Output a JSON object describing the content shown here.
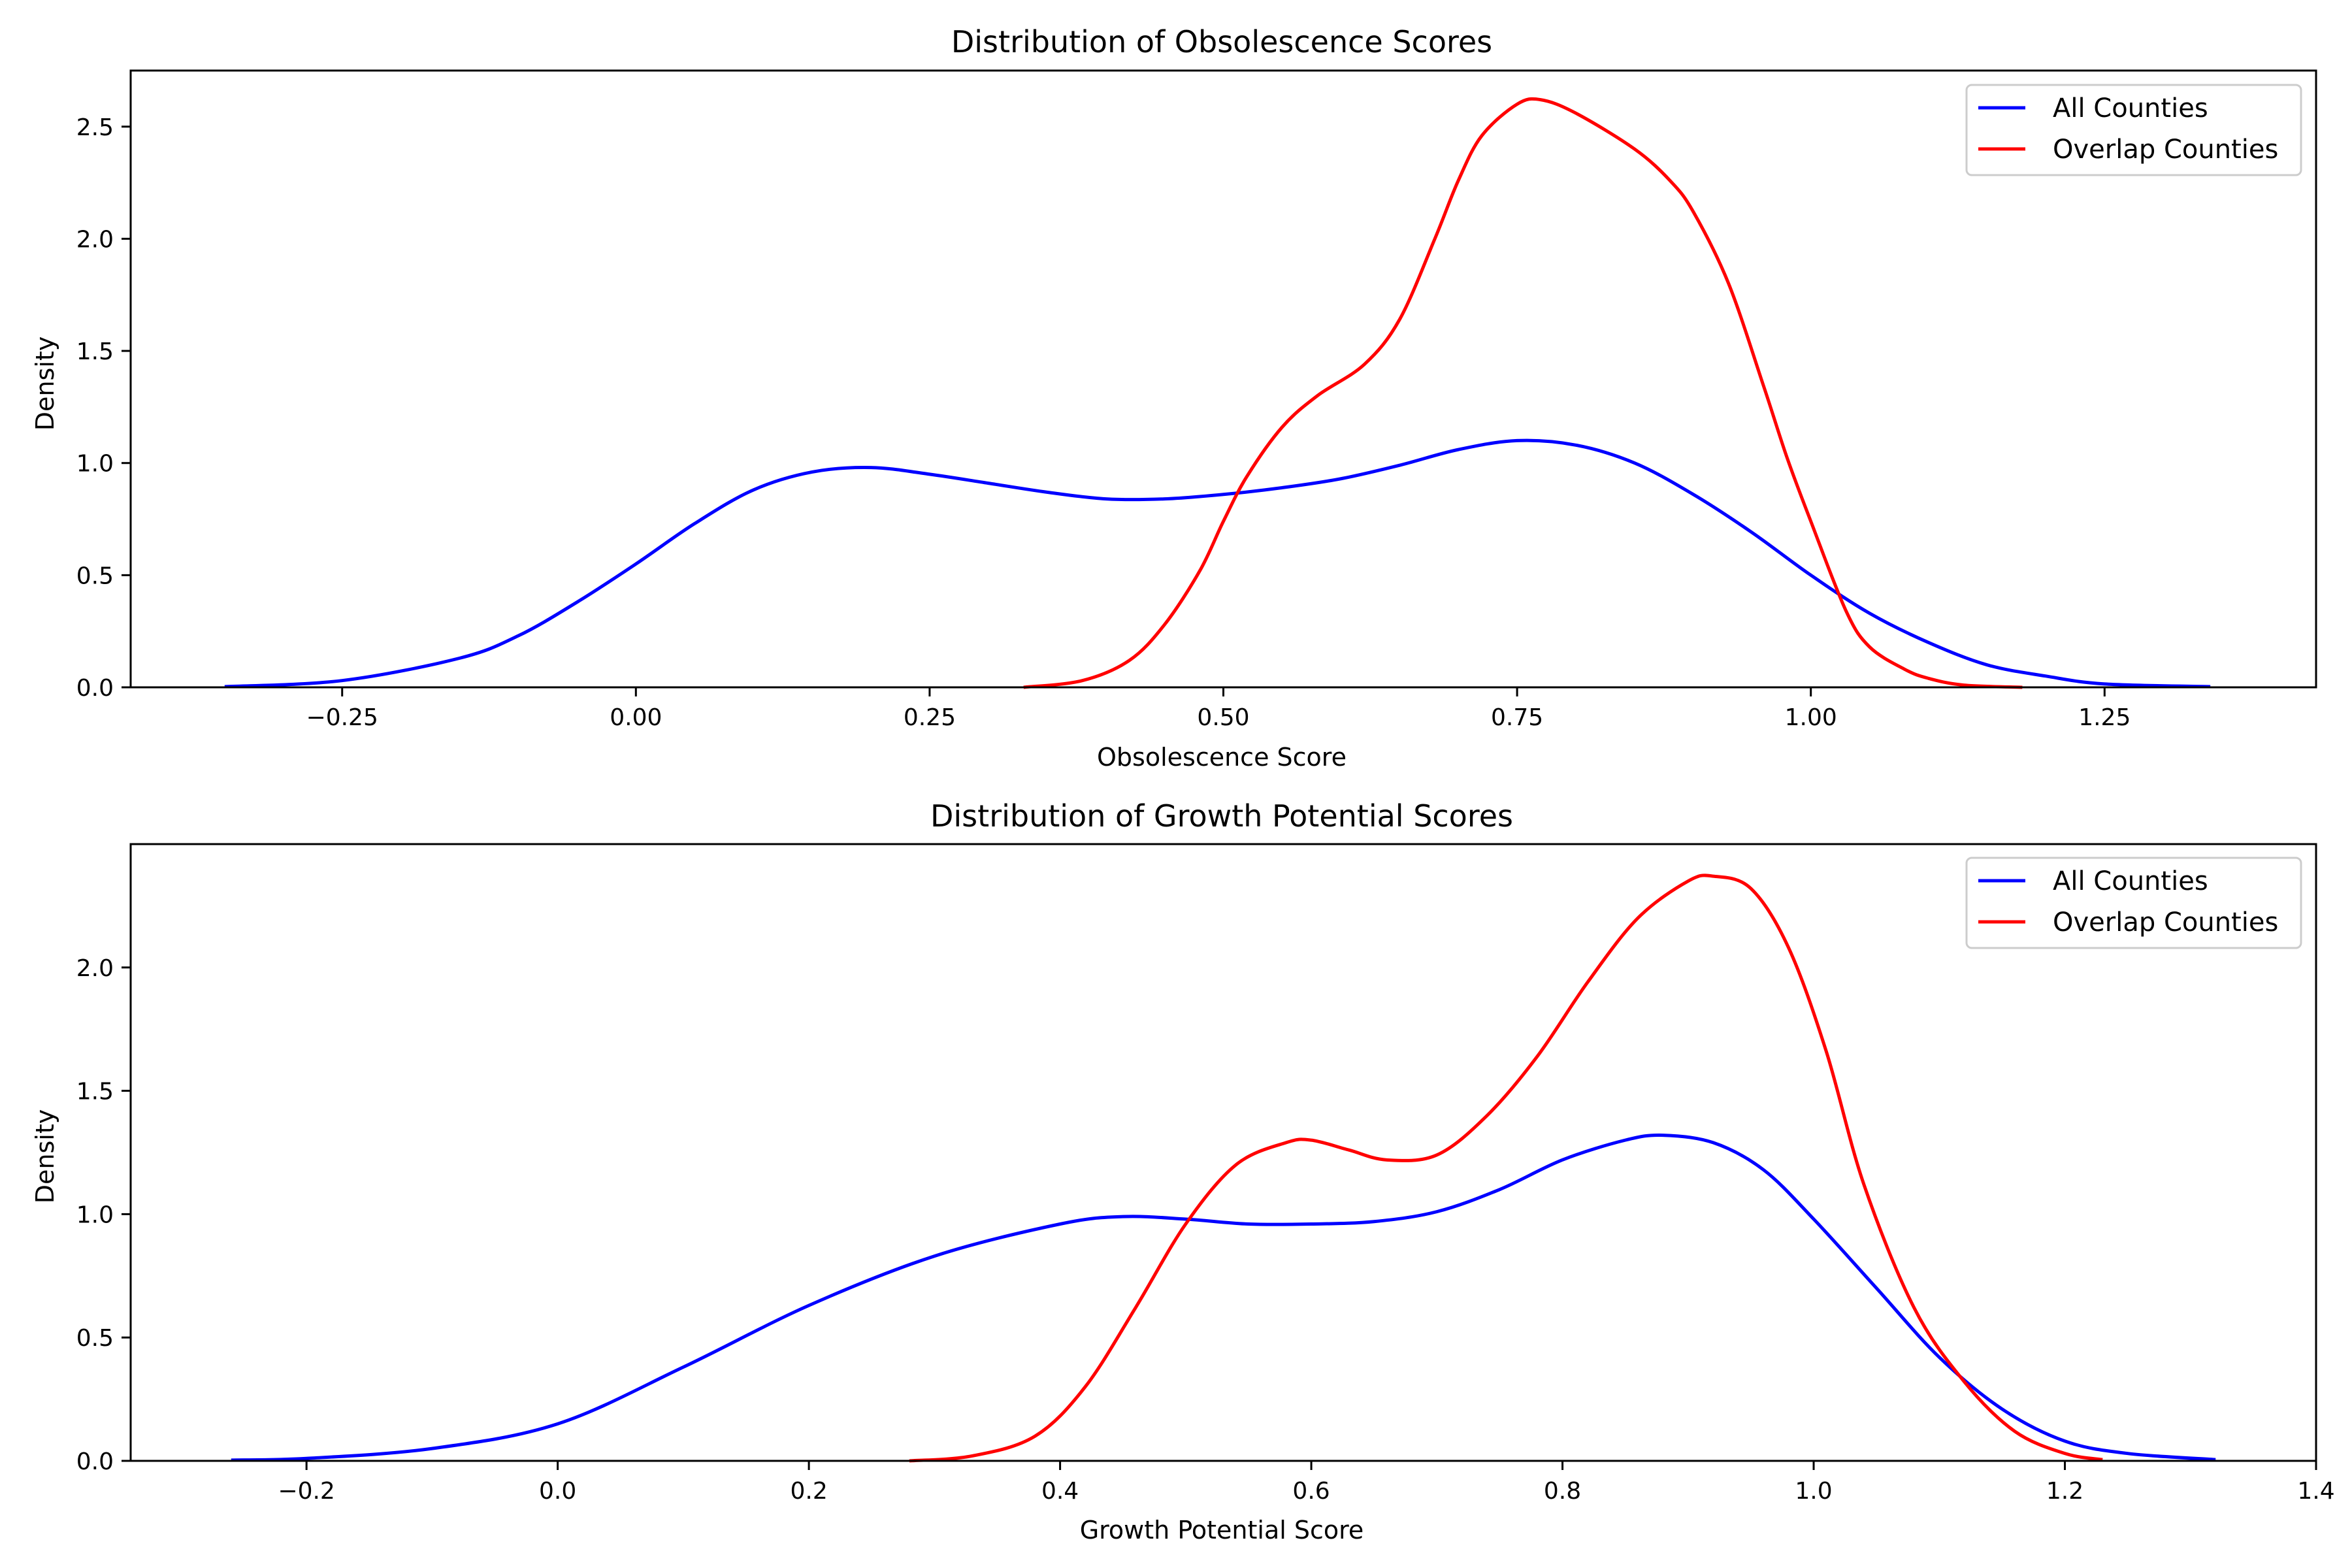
{
  "chart_data": [
    {
      "type": "line",
      "title": "Distribution of Obsolescence Scores",
      "xlabel": "Obsolescence Score",
      "ylabel": "Density",
      "xlim": [
        -0.43,
        1.43
      ],
      "ylim": [
        0,
        2.75
      ],
      "xticks": [
        -0.25,
        0.0,
        0.25,
        0.5,
        0.75,
        1.0,
        1.25
      ],
      "xtick_labels": [
        "−0.25",
        "0.00",
        "0.25",
        "0.50",
        "0.75",
        "1.00",
        "1.25"
      ],
      "yticks": [
        0.0,
        0.5,
        1.0,
        1.5,
        2.0,
        2.5
      ],
      "ytick_labels": [
        "0.0",
        "0.5",
        "1.0",
        "1.5",
        "2.0",
        "2.5"
      ],
      "grid": false,
      "legend": "top-right",
      "series": [
        {
          "name": "All Counties",
          "color": "#0000ff",
          "x": [
            -0.35,
            -0.25,
            -0.15,
            -0.1,
            -0.05,
            0.0,
            0.05,
            0.1,
            0.15,
            0.2,
            0.25,
            0.3,
            0.35,
            0.4,
            0.45,
            0.5,
            0.55,
            0.6,
            0.65,
            0.7,
            0.75,
            0.8,
            0.85,
            0.9,
            0.95,
            1.0,
            1.05,
            1.1,
            1.15,
            1.2,
            1.25,
            1.34
          ],
          "y": [
            0.003,
            0.03,
            0.13,
            0.23,
            0.38,
            0.55,
            0.73,
            0.88,
            0.96,
            0.98,
            0.95,
            0.91,
            0.87,
            0.84,
            0.84,
            0.86,
            0.89,
            0.93,
            0.99,
            1.06,
            1.1,
            1.08,
            1.0,
            0.86,
            0.69,
            0.5,
            0.33,
            0.2,
            0.1,
            0.05,
            0.015,
            0.003
          ]
        },
        {
          "name": "Overlap Counties",
          "color": "#ff0000",
          "x": [
            0.33,
            0.38,
            0.42,
            0.45,
            0.48,
            0.5,
            0.52,
            0.55,
            0.58,
            0.62,
            0.65,
            0.68,
            0.7,
            0.72,
            0.75,
            0.77,
            0.8,
            0.85,
            0.88,
            0.9,
            0.93,
            0.96,
            0.98,
            1.0,
            1.03,
            1.05,
            1.08,
            1.1,
            1.13,
            1.18
          ],
          "y": [
            0.0,
            0.03,
            0.12,
            0.28,
            0.52,
            0.74,
            0.94,
            1.16,
            1.3,
            1.44,
            1.64,
            2.0,
            2.26,
            2.46,
            2.6,
            2.62,
            2.56,
            2.4,
            2.26,
            2.12,
            1.8,
            1.34,
            1.02,
            0.74,
            0.34,
            0.18,
            0.08,
            0.04,
            0.01,
            0.0
          ]
        }
      ]
    },
    {
      "type": "line",
      "title": "Distribution of Growth Potential Scores",
      "xlabel": "Growth Potential Score",
      "ylabel": "Density",
      "xlim": [
        -0.34,
        1.4
      ],
      "ylim": [
        0,
        2.5
      ],
      "xticks": [
        -0.2,
        0.0,
        0.2,
        0.4,
        0.6,
        0.8,
        1.0,
        1.2,
        1.4
      ],
      "xtick_labels": [
        "−0.2",
        "0.0",
        "0.2",
        "0.4",
        "0.6",
        "0.8",
        "1.0",
        "1.2",
        "1.4"
      ],
      "yticks": [
        0.0,
        0.5,
        1.0,
        1.5,
        2.0
      ],
      "ytick_labels": [
        "0.0",
        "0.5",
        "1.0",
        "1.5",
        "2.0"
      ],
      "grid": false,
      "legend": "top-right",
      "series": [
        {
          "name": "All Counties",
          "color": "#0000ff",
          "x": [
            -0.26,
            -0.2,
            -0.1,
            0.0,
            0.1,
            0.2,
            0.3,
            0.4,
            0.45,
            0.5,
            0.55,
            0.6,
            0.65,
            0.7,
            0.75,
            0.8,
            0.85,
            0.88,
            0.92,
            0.96,
            1.0,
            1.05,
            1.1,
            1.15,
            1.2,
            1.25,
            1.32
          ],
          "y": [
            0.003,
            0.01,
            0.05,
            0.15,
            0.38,
            0.63,
            0.83,
            0.96,
            0.99,
            0.98,
            0.96,
            0.96,
            0.97,
            1.01,
            1.1,
            1.22,
            1.3,
            1.32,
            1.29,
            1.18,
            0.98,
            0.7,
            0.42,
            0.21,
            0.08,
            0.03,
            0.005
          ]
        },
        {
          "name": "Overlap Counties",
          "color": "#ff0000",
          "x": [
            0.28,
            0.33,
            0.38,
            0.42,
            0.46,
            0.5,
            0.54,
            0.58,
            0.6,
            0.63,
            0.66,
            0.7,
            0.74,
            0.78,
            0.82,
            0.86,
            0.9,
            0.92,
            0.95,
            0.98,
            1.01,
            1.04,
            1.08,
            1.12,
            1.16,
            1.2,
            1.23
          ],
          "y": [
            0.0,
            0.02,
            0.1,
            0.3,
            0.62,
            0.96,
            1.2,
            1.29,
            1.3,
            1.26,
            1.22,
            1.24,
            1.4,
            1.64,
            1.94,
            2.2,
            2.35,
            2.37,
            2.32,
            2.08,
            1.66,
            1.12,
            0.62,
            0.32,
            0.12,
            0.03,
            0.005
          ]
        }
      ]
    }
  ]
}
